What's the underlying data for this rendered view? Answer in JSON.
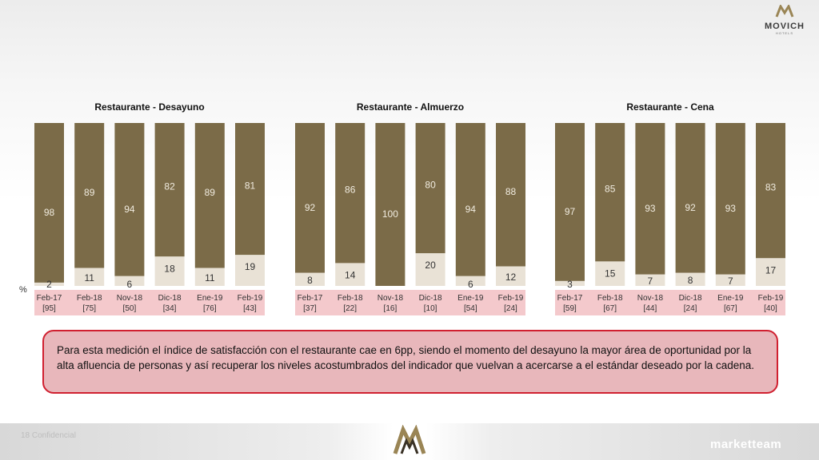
{
  "brand": {
    "name": "MOVICH",
    "sub": "HOTELS",
    "footer_brand": "marketteam"
  },
  "footer": {
    "text": "18 Confidencial"
  },
  "percent_label": "%",
  "colors": {
    "dark": "#7b6b48",
    "light": "#e9e2d6",
    "band": "#f4c9cc"
  },
  "chart_data": [
    {
      "type": "bar",
      "title": "Restaurante - Desayuno",
      "categories": [
        "Feb-17",
        "Feb-18",
        "Nov-18",
        "Dic-18",
        "Ene-19",
        "Feb-19"
      ],
      "n": [
        "[95]",
        "[75]",
        "[50]",
        "[34]",
        "[76]",
        "[43]"
      ],
      "series": [
        {
          "values": [
            98,
            89,
            94,
            82,
            89,
            81
          ]
        },
        {
          "values": [
            2,
            11,
            6,
            18,
            11,
            19
          ]
        }
      ],
      "stacked": true,
      "ylim": [
        0,
        100
      ]
    },
    {
      "type": "bar",
      "title": "Restaurante - Almuerzo",
      "categories": [
        "Feb-17",
        "Feb-18",
        "Nov-18",
        "Dic-18",
        "Ene-19",
        "Feb-19"
      ],
      "n": [
        "[37]",
        "[22]",
        "[16]",
        "[10]",
        "[54]",
        "[24]"
      ],
      "series": [
        {
          "values": [
            92,
            86,
            100,
            80,
            94,
            88
          ]
        },
        {
          "values": [
            8,
            14,
            0,
            20,
            6,
            12
          ]
        }
      ],
      "stacked": true,
      "ylim": [
        0,
        100
      ]
    },
    {
      "type": "bar",
      "title": "Restaurante - Cena",
      "categories": [
        "Feb-17",
        "Feb-18",
        "Nov-18",
        "Dic-18",
        "Ene-19",
        "Feb-19"
      ],
      "n": [
        "[59]",
        "[67]",
        "[44]",
        "[24]",
        "[67]",
        "[40]"
      ],
      "series": [
        {
          "values": [
            97,
            85,
            93,
            92,
            93,
            83
          ]
        },
        {
          "values": [
            3,
            15,
            7,
            8,
            7,
            17
          ]
        }
      ],
      "stacked": true,
      "ylim": [
        0,
        100
      ]
    }
  ],
  "note": "Para esta medición el índice de satisfacción con el restaurante cae en 6pp, siendo el momento del desayuno la mayor área de oportunidad por la alta afluencia de personas y así recuperar los niveles acostumbrados del indicador que vuelvan a acercarse a el estándar deseado por la cadena."
}
